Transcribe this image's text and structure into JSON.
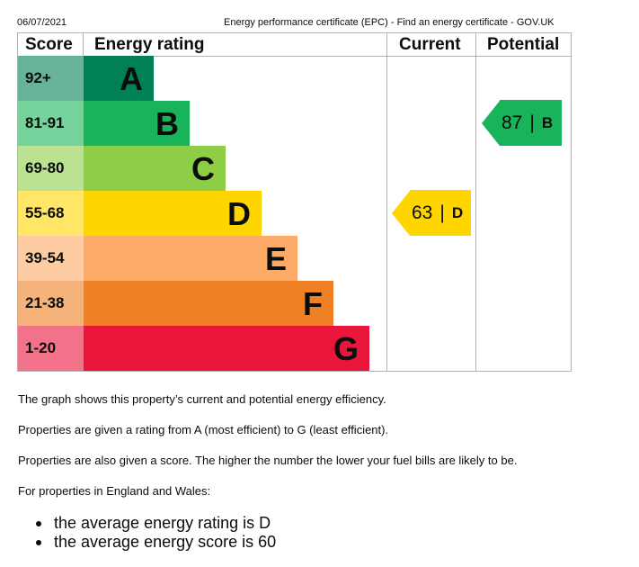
{
  "header": {
    "date": "06/07/2021",
    "title": "Energy performance certificate (EPC) - Find an energy certificate - GOV.UK"
  },
  "table": {
    "headers": {
      "score": "Score",
      "rating": "Energy rating",
      "current": "Current",
      "potential": "Potential"
    },
    "bands": [
      {
        "range": "92+",
        "letter": "A",
        "bar_color": "#008054",
        "score_color": "#66b398"
      },
      {
        "range": "81-91",
        "letter": "B",
        "bar_color": "#19b459",
        "score_color": "#75d29b"
      },
      {
        "range": "69-80",
        "letter": "C",
        "bar_color": "#8dce46",
        "score_color": "#bbe290"
      },
      {
        "range": "55-68",
        "letter": "D",
        "bar_color": "#ffd500",
        "score_color": "#ffe666"
      },
      {
        "range": "39-54",
        "letter": "E",
        "bar_color": "#fcaa65",
        "score_color": "#fdcca3"
      },
      {
        "range": "21-38",
        "letter": "F",
        "bar_color": "#ef8023",
        "score_color": "#f5b37b"
      },
      {
        "range": "1-20",
        "letter": "G",
        "bar_color": "#e9153b",
        "score_color": "#f27389"
      }
    ],
    "current": {
      "score": "63",
      "separator": "|",
      "letter": "D",
      "color": "#ffd500"
    },
    "potential": {
      "score": "87",
      "separator": "|",
      "letter": "B",
      "color": "#19b459"
    }
  },
  "text": {
    "p1": "The graph shows this property’s current and potential energy efficiency.",
    "p2": "Properties are given a rating from A (most efficient) to G (least efficient).",
    "p3": "Properties are also given a score. The higher the number the lower your fuel bills are likely to be.",
    "p4": "For properties in England and Wales:",
    "bullets": [
      "the average energy rating is D",
      "the average energy score is 60"
    ]
  }
}
